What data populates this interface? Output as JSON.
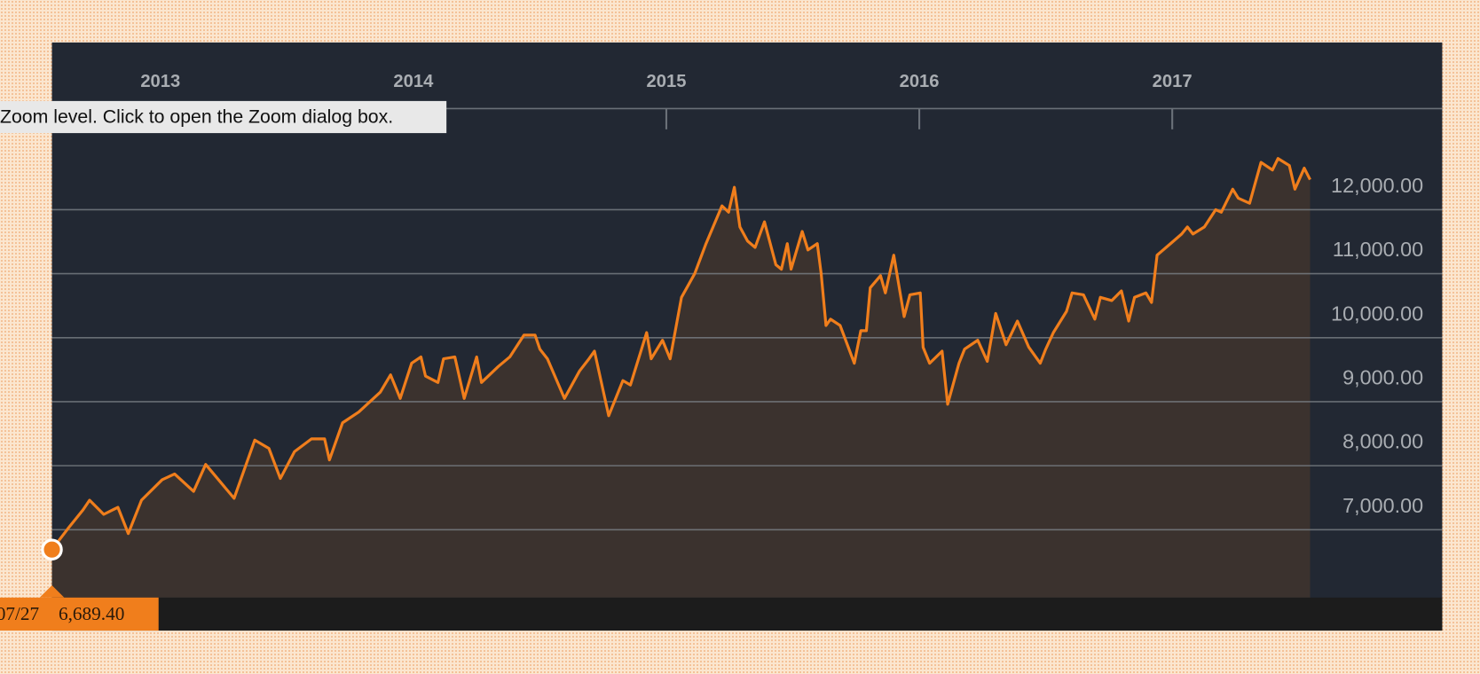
{
  "tooltip": "Zoom level. Click to open the Zoom dialog box.",
  "chart_data": {
    "type": "area-line",
    "x": [
      2012.571,
      2012.634,
      2012.694,
      2012.72,
      2012.776,
      2012.832,
      2012.873,
      2012.925,
      2013.007,
      2013.056,
      2013.131,
      2013.179,
      2013.291,
      2013.373,
      2013.429,
      2013.474,
      2013.53,
      2013.597,
      2013.649,
      2013.668,
      2013.72,
      2013.784,
      2013.869,
      2013.91,
      2013.948,
      2013.993,
      2014.03,
      2014.048,
      2014.097,
      2014.119,
      2014.164,
      2014.201,
      2014.25,
      2014.269,
      2014.336,
      2014.381,
      2014.437,
      2014.481,
      2014.5,
      2014.53,
      2014.597,
      2014.657,
      2014.694,
      2014.716,
      2014.772,
      2014.828,
      2014.858,
      2014.922,
      2014.94,
      2014.985,
      2015.015,
      2015.06,
      2015.112,
      2015.157,
      2015.22,
      2015.246,
      2015.269,
      2015.291,
      2015.321,
      2015.351,
      2015.388,
      2015.433,
      2015.455,
      2015.478,
      2015.493,
      2015.537,
      2015.56,
      2015.597,
      2015.612,
      2015.631,
      2015.649,
      2015.687,
      2015.743,
      2015.769,
      2015.791,
      2015.806,
      2015.847,
      2015.866,
      2015.899,
      2015.94,
      2015.963,
      2016.004,
      2016.015,
      2016.041,
      2016.09,
      2016.112,
      2016.157,
      2016.179,
      2016.231,
      2016.269,
      2016.302,
      2016.343,
      2016.388,
      2016.433,
      2016.478,
      2016.5,
      2016.53,
      2016.582,
      2016.604,
      2016.649,
      2016.694,
      2016.716,
      2016.761,
      2016.799,
      2016.828,
      2016.851,
      2016.896,
      2016.918,
      2016.94,
      2016.993,
      2017.037,
      2017.06,
      2017.082,
      2017.127,
      2017.172,
      2017.194,
      2017.239,
      2017.261,
      2017.306,
      2017.351,
      2017.396,
      2017.418,
      2017.463,
      2017.485,
      2017.522,
      2017.545
    ],
    "series": [
      {
        "color": "#f07e1c",
        "fill": "#3b322e",
        "values": [
          6689.4,
          7015,
          7310,
          7460,
          7240,
          7350,
          6940,
          7460,
          7780,
          7870,
          7600,
          8020,
          7490,
          8400,
          8270,
          7800,
          8220,
          8420,
          8420,
          8090,
          8670,
          8840,
          9150,
          9420,
          9050,
          9600,
          9700,
          9400,
          9300,
          9670,
          9700,
          9050,
          9700,
          9300,
          9550,
          9700,
          10040,
          10040,
          9820,
          9670,
          9050,
          9480,
          9670,
          9790,
          8780,
          9330,
          9260,
          10080,
          9670,
          9960,
          9670,
          10630,
          11000,
          11470,
          12060,
          11960,
          12350,
          11730,
          11510,
          11410,
          11810,
          11140,
          11070,
          11470,
          11070,
          11660,
          11370,
          11470,
          11000,
          10190,
          10290,
          10190,
          9600,
          10110,
          10110,
          10780,
          10970,
          10700,
          11290,
          10330,
          10670,
          10700,
          9850,
          9600,
          9790,
          8960,
          9600,
          9820,
          9960,
          9630,
          10380,
          9890,
          10260,
          9850,
          9600,
          9820,
          10080,
          10410,
          10700,
          10670,
          10290,
          10630,
          10580,
          10730,
          10260,
          10630,
          10700,
          10550,
          11290,
          11470,
          11620,
          11730,
          11620,
          11730,
          12000,
          11960,
          12320,
          12180,
          12100,
          12740,
          12620,
          12800,
          12690,
          12320,
          12650,
          12470
        ]
      }
    ],
    "xlim": [
      2012.571,
      2017.545
    ],
    "xticks": [
      2013,
      2014,
      2015,
      2016,
      2017
    ],
    "ylim": [
      5940,
      13580
    ],
    "yticks": [
      {
        "value": 7000,
        "label": "7,000.00"
      },
      {
        "value": 8000,
        "label": "8,000.00"
      },
      {
        "value": 9000,
        "label": "9,000.00"
      },
      {
        "value": 10000,
        "label": "10,000.00"
      },
      {
        "value": 11000,
        "label": "11,000.00"
      },
      {
        "value": 12000,
        "label": "12,000.00"
      }
    ],
    "grid": true,
    "crosshair": {
      "x_label": "07/27",
      "value": 6689.4,
      "value_label": "6,689.40"
    }
  }
}
